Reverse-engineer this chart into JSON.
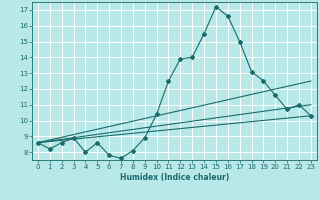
{
  "background_color": "#b8e8e8",
  "grid_color": "#ffffff",
  "line_color": "#1a6b6b",
  "xlabel": "Humidex (Indice chaleur)",
  "xlim": [
    -0.5,
    23.5
  ],
  "ylim": [
    7.5,
    17.5
  ],
  "yticks": [
    8,
    9,
    10,
    11,
    12,
    13,
    14,
    15,
    16,
    17
  ],
  "xticks": [
    0,
    1,
    2,
    3,
    4,
    5,
    6,
    7,
    8,
    9,
    10,
    11,
    12,
    13,
    14,
    15,
    16,
    17,
    18,
    19,
    20,
    21,
    22,
    23
  ],
  "line1_x": [
    0,
    1,
    2,
    3,
    4,
    5,
    6,
    7,
    8,
    9,
    10,
    11,
    12,
    13,
    14,
    15,
    16,
    17,
    18,
    19,
    20,
    21,
    22,
    23
  ],
  "line1_y": [
    8.6,
    8.2,
    8.6,
    8.9,
    8.0,
    8.6,
    7.8,
    7.6,
    8.1,
    8.9,
    10.4,
    12.5,
    13.9,
    14.0,
    15.5,
    17.2,
    16.6,
    15.0,
    13.1,
    12.5,
    11.6,
    10.7,
    11.0,
    10.3
  ],
  "line2_x": [
    0,
    23
  ],
  "line2_y": [
    8.6,
    10.3
  ],
  "line3_x": [
    0,
    23
  ],
  "line3_y": [
    8.6,
    11.0
  ],
  "line4_x": [
    0,
    23
  ],
  "line4_y": [
    8.6,
    12.5
  ]
}
